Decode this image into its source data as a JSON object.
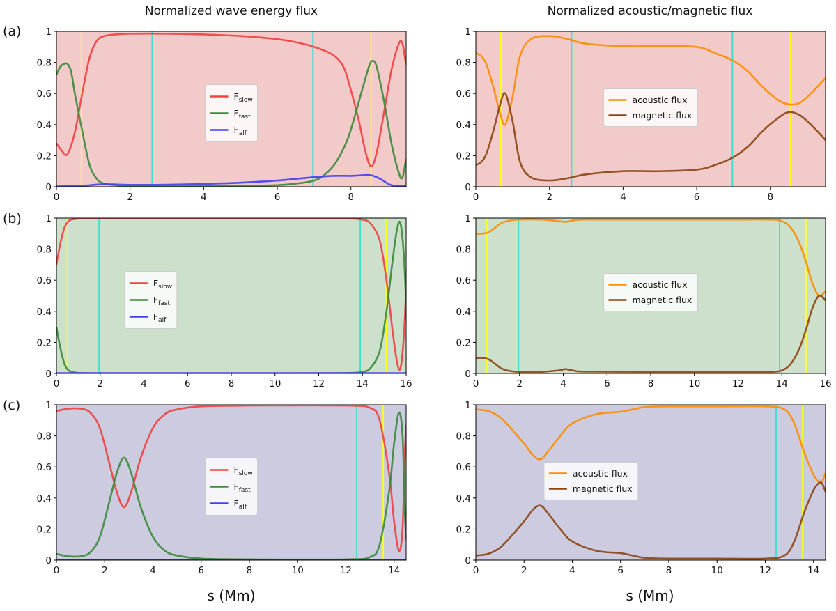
{
  "header": {
    "left_title": "Normalized wave energy flux",
    "right_title": "Normalized acoustic/magnetic flux"
  },
  "panel_labels": [
    "(a)",
    "(b)",
    "(c)"
  ],
  "xlabel": "s (Mm)",
  "colors": {
    "bg_a": "#f3caca",
    "bg_b": "#cde0cc",
    "bg_c": "#cccbe0",
    "slow": "#f04040",
    "fast": "#3a8a3a",
    "alf": "#4040f0",
    "acoustic": "#ff8c00",
    "magnetic": "#8b4513",
    "yellow": "#ffff20",
    "cyan": "#40e0d0"
  },
  "chart_data": [
    {
      "id": "a-left",
      "type": "line",
      "row": 0,
      "col": 0,
      "bg": "bg_a",
      "xlim": [
        0,
        9.5
      ],
      "ylim": [
        0,
        1
      ],
      "xticks": [
        0,
        2,
        4,
        6,
        8
      ],
      "yticks": [
        0,
        0.2,
        0.4,
        0.6,
        0.8,
        1.0
      ],
      "vlines": [
        {
          "x": 0.68,
          "color": "yellow"
        },
        {
          "x": 2.6,
          "color": "cyan"
        },
        {
          "x": 6.97,
          "color": "cyan"
        },
        {
          "x": 8.55,
          "color": "yellow"
        }
      ],
      "legend": {
        "loc": "center"
      },
      "series": [
        {
          "name": "F",
          "sub": "slow",
          "color": "slow",
          "x": [
            0,
            0.15,
            0.3,
            0.5,
            0.7,
            0.9,
            1.1,
            1.3,
            1.6,
            2,
            3,
            4,
            5,
            6,
            6.5,
            7,
            7.5,
            7.8,
            8.0,
            8.2,
            8.4,
            8.55,
            8.7,
            8.9,
            9.1,
            9.3,
            9.4,
            9.5
          ],
          "y": [
            0.28,
            0.23,
            0.21,
            0.35,
            0.6,
            0.83,
            0.94,
            0.97,
            0.98,
            0.985,
            0.985,
            0.98,
            0.97,
            0.95,
            0.93,
            0.9,
            0.85,
            0.77,
            0.62,
            0.44,
            0.22,
            0.13,
            0.22,
            0.48,
            0.75,
            0.92,
            0.92,
            0.78
          ]
        },
        {
          "name": "F",
          "sub": "fast",
          "color": "fast",
          "x": [
            0,
            0.1,
            0.2,
            0.3,
            0.4,
            0.5,
            0.7,
            0.9,
            1.1,
            1.3,
            1.6,
            2,
            3,
            4,
            5,
            6,
            6.5,
            7,
            7.3,
            7.6,
            7.9,
            8.1,
            8.3,
            8.5,
            8.6,
            8.7,
            8.9,
            9.1,
            9.3,
            9.4,
            9.5
          ],
          "y": [
            0.72,
            0.77,
            0.79,
            0.79,
            0.74,
            0.6,
            0.36,
            0.14,
            0.05,
            0.02,
            0.01,
            0.005,
            0.005,
            0.005,
            0.005,
            0.01,
            0.02,
            0.04,
            0.08,
            0.16,
            0.3,
            0.45,
            0.62,
            0.78,
            0.81,
            0.77,
            0.55,
            0.28,
            0.09,
            0.06,
            0.18
          ]
        },
        {
          "name": "F",
          "sub": "alf",
          "color": "alf",
          "x": [
            0,
            0.5,
            0.8,
            1.0,
            1.3,
            1.6,
            2,
            3,
            4,
            5,
            6,
            7,
            7.5,
            8,
            8.3,
            8.55,
            8.8,
            9.1,
            9.5
          ],
          "y": [
            0.002,
            0.004,
            0.007,
            0.012,
            0.016,
            0.015,
            0.012,
            0.013,
            0.018,
            0.026,
            0.04,
            0.062,
            0.07,
            0.07,
            0.074,
            0.074,
            0.05,
            0.01,
            0.003
          ]
        }
      ]
    },
    {
      "id": "a-right",
      "type": "line",
      "row": 0,
      "col": 1,
      "bg": "bg_a",
      "xlim": [
        0,
        9.5
      ],
      "ylim": [
        0,
        1
      ],
      "xticks": [
        0,
        2,
        4,
        6,
        8
      ],
      "yticks": [
        0,
        0.2,
        0.4,
        0.6,
        0.8,
        1.0
      ],
      "vlines": [
        {
          "x": 0.68,
          "color": "yellow"
        },
        {
          "x": 2.6,
          "color": "cyan"
        },
        {
          "x": 6.97,
          "color": "cyan"
        },
        {
          "x": 8.55,
          "color": "yellow"
        }
      ],
      "legend": {
        "loc": "center"
      },
      "series": [
        {
          "name": "acoustic flux",
          "color": "acoustic",
          "x": [
            0,
            0.15,
            0.3,
            0.5,
            0.65,
            0.8,
            1.0,
            1.2,
            1.5,
            2,
            2.5,
            3,
            4,
            5,
            6,
            6.5,
            7,
            7.4,
            7.8,
            8.2,
            8.5,
            8.8,
            9.1,
            9.5
          ],
          "y": [
            0.86,
            0.84,
            0.78,
            0.62,
            0.48,
            0.4,
            0.58,
            0.84,
            0.95,
            0.97,
            0.95,
            0.92,
            0.905,
            0.905,
            0.9,
            0.86,
            0.81,
            0.74,
            0.64,
            0.56,
            0.53,
            0.54,
            0.6,
            0.7
          ]
        },
        {
          "name": "magnetic flux",
          "color": "magnetic",
          "x": [
            0,
            0.15,
            0.3,
            0.5,
            0.65,
            0.8,
            1.0,
            1.2,
            1.5,
            2,
            2.5,
            3,
            4,
            5,
            6,
            6.5,
            7,
            7.4,
            7.8,
            8.2,
            8.5,
            8.8,
            9.1,
            9.5
          ],
          "y": [
            0.14,
            0.16,
            0.22,
            0.38,
            0.52,
            0.6,
            0.42,
            0.16,
            0.06,
            0.04,
            0.055,
            0.08,
            0.1,
            0.1,
            0.11,
            0.14,
            0.19,
            0.26,
            0.36,
            0.44,
            0.48,
            0.46,
            0.4,
            0.3
          ]
        }
      ]
    },
    {
      "id": "b-left",
      "type": "line",
      "row": 1,
      "col": 0,
      "bg": "bg_b",
      "xlim": [
        0,
        16
      ],
      "ylim": [
        0,
        1
      ],
      "xticks": [
        0,
        2,
        4,
        6,
        8,
        10,
        12,
        14,
        16
      ],
      "yticks": [
        0,
        0.2,
        0.4,
        0.6,
        0.8,
        1.0
      ],
      "vlines": [
        {
          "x": 0.5,
          "color": "yellow"
        },
        {
          "x": 1.95,
          "color": "cyan"
        },
        {
          "x": 13.9,
          "color": "cyan"
        },
        {
          "x": 15.1,
          "color": "yellow"
        }
      ],
      "legend": {
        "loc": "center-left"
      },
      "series": [
        {
          "name": "F",
          "sub": "slow",
          "color": "slow",
          "x": [
            0,
            0.1,
            0.25,
            0.4,
            0.6,
            0.9,
            1.3,
            2,
            5,
            10,
            13,
            14,
            14.4,
            14.8,
            15.1,
            15.4,
            15.6,
            15.75,
            15.9,
            16
          ],
          "y": [
            0.7,
            0.78,
            0.88,
            0.95,
            0.985,
            0.995,
            0.998,
            0.999,
            0.999,
            0.999,
            0.998,
            0.99,
            0.96,
            0.85,
            0.6,
            0.25,
            0.06,
            0.04,
            0.25,
            0.55
          ]
        },
        {
          "name": "F",
          "sub": "fast",
          "color": "fast",
          "x": [
            0,
            0.1,
            0.25,
            0.4,
            0.6,
            0.9,
            1.3,
            2,
            5,
            10,
            13,
            14,
            14.4,
            14.8,
            15.1,
            15.4,
            15.6,
            15.75,
            15.9,
            16
          ],
          "y": [
            0.3,
            0.22,
            0.12,
            0.05,
            0.015,
            0.005,
            0.002,
            0.001,
            0.001,
            0.001,
            0.002,
            0.01,
            0.04,
            0.15,
            0.4,
            0.75,
            0.94,
            0.96,
            0.75,
            0.45
          ]
        },
        {
          "name": "F",
          "sub": "alf",
          "color": "alf",
          "x": [
            0,
            4,
            8,
            12,
            16
          ],
          "y": [
            0.002,
            0.002,
            0.002,
            0.002,
            0.002
          ]
        }
      ]
    },
    {
      "id": "b-right",
      "type": "line",
      "row": 1,
      "col": 1,
      "bg": "bg_b",
      "xlim": [
        0,
        16
      ],
      "ylim": [
        0,
        1
      ],
      "xticks": [
        0,
        2,
        4,
        6,
        8,
        10,
        12,
        14,
        16
      ],
      "yticks": [
        0,
        0.2,
        0.4,
        0.6,
        0.8,
        1.0
      ],
      "vlines": [
        {
          "x": 0.5,
          "color": "yellow"
        },
        {
          "x": 1.95,
          "color": "cyan"
        },
        {
          "x": 13.9,
          "color": "cyan"
        },
        {
          "x": 15.1,
          "color": "yellow"
        }
      ],
      "legend": {
        "loc": "center"
      },
      "series": [
        {
          "name": "acoustic flux",
          "color": "acoustic",
          "x": [
            0,
            0.3,
            0.6,
            0.9,
            1.2,
            1.6,
            2,
            3,
            3.8,
            4.1,
            4.5,
            5,
            8,
            12,
            13.5,
            14,
            14.4,
            14.8,
            15.1,
            15.4,
            15.7,
            16
          ],
          "y": [
            0.9,
            0.9,
            0.91,
            0.94,
            0.97,
            0.985,
            0.99,
            0.99,
            0.98,
            0.975,
            0.985,
            0.99,
            0.99,
            0.99,
            0.99,
            0.98,
            0.94,
            0.84,
            0.72,
            0.58,
            0.5,
            0.53
          ]
        },
        {
          "name": "magnetic flux",
          "color": "magnetic",
          "x": [
            0,
            0.3,
            0.6,
            0.9,
            1.2,
            1.6,
            2,
            3,
            3.8,
            4.1,
            4.5,
            5,
            8,
            12,
            13.5,
            14,
            14.4,
            14.8,
            15.1,
            15.4,
            15.7,
            16
          ],
          "y": [
            0.1,
            0.1,
            0.09,
            0.06,
            0.03,
            0.015,
            0.01,
            0.01,
            0.02,
            0.028,
            0.018,
            0.012,
            0.01,
            0.01,
            0.01,
            0.02,
            0.06,
            0.16,
            0.28,
            0.42,
            0.5,
            0.47
          ]
        }
      ]
    },
    {
      "id": "c-left",
      "type": "line",
      "row": 2,
      "col": 0,
      "bg": "bg_c",
      "xlim": [
        0,
        14.5
      ],
      "ylim": [
        0,
        1
      ],
      "xticks": [
        0,
        2,
        4,
        6,
        8,
        10,
        12,
        14
      ],
      "yticks": [
        0,
        0.2,
        0.4,
        0.6,
        0.8,
        1.0
      ],
      "vlines": [
        {
          "x": 12.45,
          "color": "cyan"
        },
        {
          "x": 13.55,
          "color": "yellow"
        }
      ],
      "legend": {
        "loc": "center"
      },
      "series": [
        {
          "name": "F",
          "sub": "slow",
          "color": "slow",
          "x": [
            0,
            0.5,
            1.0,
            1.4,
            1.8,
            2.2,
            2.5,
            2.8,
            3.1,
            3.5,
            4.0,
            4.5,
            5,
            6,
            8,
            12,
            13,
            13.4,
            13.8,
            14.0,
            14.2,
            14.35,
            14.45,
            14.5
          ],
          "y": [
            0.96,
            0.975,
            0.975,
            0.95,
            0.85,
            0.62,
            0.44,
            0.34,
            0.44,
            0.66,
            0.85,
            0.94,
            0.97,
            0.99,
            0.995,
            0.995,
            0.98,
            0.9,
            0.55,
            0.25,
            0.06,
            0.2,
            0.7,
            0.87
          ]
        },
        {
          "name": "F",
          "sub": "fast",
          "color": "fast",
          "x": [
            0,
            0.5,
            1.0,
            1.4,
            1.8,
            2.2,
            2.5,
            2.8,
            3.1,
            3.5,
            4.0,
            4.5,
            5,
            6,
            8,
            12,
            13,
            13.4,
            13.8,
            14.0,
            14.2,
            14.35,
            14.45,
            14.5
          ],
          "y": [
            0.04,
            0.025,
            0.025,
            0.05,
            0.15,
            0.38,
            0.56,
            0.66,
            0.56,
            0.34,
            0.15,
            0.06,
            0.03,
            0.01,
            0.005,
            0.005,
            0.02,
            0.1,
            0.45,
            0.75,
            0.95,
            0.8,
            0.3,
            0.13
          ]
        },
        {
          "name": "F",
          "sub": "alf",
          "color": "alf",
          "x": [
            0,
            4,
            8,
            12,
            14.5
          ],
          "y": [
            0.002,
            0.002,
            0.002,
            0.002,
            0.002
          ]
        }
      ]
    },
    {
      "id": "c-right",
      "type": "line",
      "row": 2,
      "col": 1,
      "bg": "bg_c",
      "xlim": [
        0,
        14.5
      ],
      "ylim": [
        0,
        1
      ],
      "xticks": [
        0,
        2,
        4,
        6,
        8,
        10,
        12,
        14
      ],
      "yticks": [
        0,
        0.2,
        0.4,
        0.6,
        0.8,
        1.0
      ],
      "vlines": [
        {
          "x": 12.45,
          "color": "cyan"
        },
        {
          "x": 13.55,
          "color": "yellow"
        }
      ],
      "legend": {
        "loc": "center-left"
      },
      "series": [
        {
          "name": "acoustic flux",
          "color": "acoustic",
          "x": [
            0,
            0.5,
            1.0,
            1.5,
            2.0,
            2.4,
            2.7,
            3.0,
            3.5,
            4.0,
            5.0,
            6.0,
            6.5,
            7.0,
            8,
            10,
            12,
            12.8,
            13.2,
            13.6,
            14.0,
            14.3,
            14.5
          ],
          "y": [
            0.97,
            0.96,
            0.92,
            0.84,
            0.75,
            0.67,
            0.65,
            0.7,
            0.8,
            0.88,
            0.94,
            0.955,
            0.97,
            0.985,
            0.99,
            0.99,
            0.99,
            0.97,
            0.88,
            0.7,
            0.55,
            0.5,
            0.56
          ]
        },
        {
          "name": "magnetic flux",
          "color": "magnetic",
          "x": [
            0,
            0.5,
            1.0,
            1.5,
            2.0,
            2.4,
            2.7,
            3.0,
            3.5,
            4.0,
            5.0,
            6.0,
            6.5,
            7.0,
            8,
            10,
            12,
            12.8,
            13.2,
            13.6,
            14.0,
            14.3,
            14.5
          ],
          "y": [
            0.03,
            0.04,
            0.08,
            0.16,
            0.25,
            0.33,
            0.35,
            0.3,
            0.2,
            0.12,
            0.06,
            0.045,
            0.03,
            0.015,
            0.01,
            0.01,
            0.01,
            0.03,
            0.12,
            0.3,
            0.45,
            0.5,
            0.44
          ]
        }
      ]
    }
  ]
}
